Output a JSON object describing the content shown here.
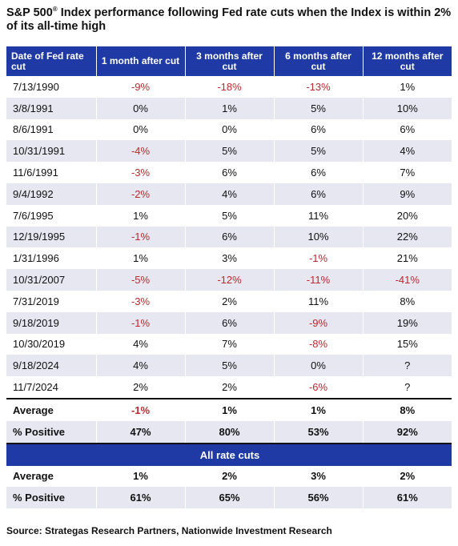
{
  "title_main": "S&P 500",
  "title_sup": "®",
  "title_rest": " Index performance following Fed rate cuts when the Index is within 2% of its all-time high",
  "headers": [
    "Date of Fed rate cut",
    "1 month after cut",
    "3 months after cut",
    "6 months after cut",
    "12 months after cut"
  ],
  "rows": [
    {
      "date": "7/13/1990",
      "m1": "-9%",
      "m3": "-18%",
      "m6": "-13%",
      "m12": "1%"
    },
    {
      "date": "3/8/1991",
      "m1": "0%",
      "m3": "1%",
      "m6": "5%",
      "m12": "10%"
    },
    {
      "date": "8/6/1991",
      "m1": "0%",
      "m3": "0%",
      "m6": "6%",
      "m12": "6%"
    },
    {
      "date": "10/31/1991",
      "m1": "-4%",
      "m3": "5%",
      "m6": "5%",
      "m12": "4%"
    },
    {
      "date": "11/6/1991",
      "m1": "-3%",
      "m3": "6%",
      "m6": "6%",
      "m12": "7%"
    },
    {
      "date": "9/4/1992",
      "m1": "-2%",
      "m3": "4%",
      "m6": "6%",
      "m12": "9%"
    },
    {
      "date": "7/6/1995",
      "m1": "1%",
      "m3": "5%",
      "m6": "11%",
      "m12": "20%"
    },
    {
      "date": "12/19/1995",
      "m1": "-1%",
      "m3": "6%",
      "m6": "10%",
      "m12": "22%"
    },
    {
      "date": "1/31/1996",
      "m1": "1%",
      "m3": "3%",
      "m6": "-1%",
      "m12": "21%"
    },
    {
      "date": "10/31/2007",
      "m1": "-5%",
      "m3": "-12%",
      "m6": "-11%",
      "m12": "-41%"
    },
    {
      "date": "7/31/2019",
      "m1": "-3%",
      "m3": "2%",
      "m6": "11%",
      "m12": "8%"
    },
    {
      "date": "9/18/2019",
      "m1": "-1%",
      "m3": "6%",
      "m6": "-9%",
      "m12": "19%"
    },
    {
      "date": "10/30/2019",
      "m1": "4%",
      "m3": "7%",
      "m6": "-8%",
      "m12": "15%"
    },
    {
      "date": "9/18/2024",
      "m1": "4%",
      "m3": "5%",
      "m6": "0%",
      "m12": "?"
    },
    {
      "date": "11/7/2024",
      "m1": "2%",
      "m3": "2%",
      "m6": "-6%",
      "m12": "?"
    }
  ],
  "summary_near_high": [
    {
      "label": "Average",
      "m1": "-1%",
      "m3": "1%",
      "m6": "1%",
      "m12": "8%"
    },
    {
      "label": "% Positive",
      "m1": "47%",
      "m3": "80%",
      "m6": "53%",
      "m12": "92%"
    }
  ],
  "all_cuts_label": "All rate cuts",
  "summary_all_cuts": [
    {
      "label": "Average",
      "m1": "1%",
      "m3": "2%",
      "m6": "3%",
      "m12": "2%"
    },
    {
      "label": "% Positive",
      "m1": "61%",
      "m3": "65%",
      "m6": "56%",
      "m12": "61%"
    }
  ],
  "source": "Source: Strategas Research Partners, Nationwide Investment Research",
  "colors": {
    "header_bg": "#1f3aa5",
    "negative": "#c0272d",
    "stripe": "#e6e7f1"
  }
}
